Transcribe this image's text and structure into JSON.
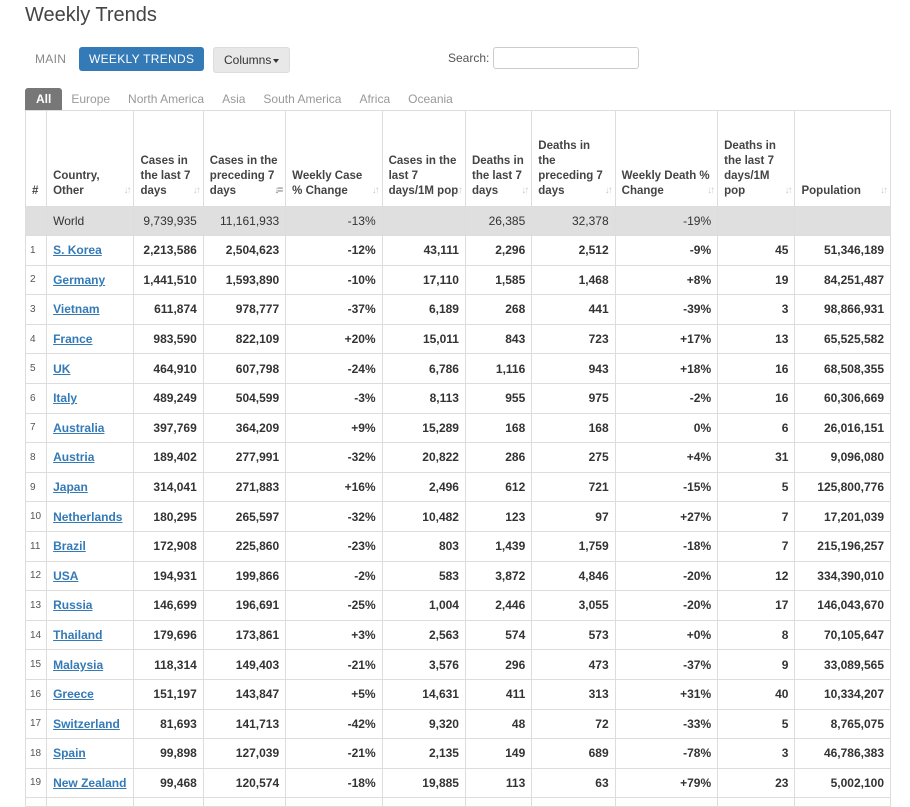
{
  "page": {
    "title": "Weekly Trends"
  },
  "toolbar": {
    "main_label": "MAIN",
    "weekly_label": "WEEKLY TRENDS",
    "columns_label": "Columns",
    "search_label": "Search:",
    "search_value": ""
  },
  "tabs": [
    "All",
    "Europe",
    "North America",
    "Asia",
    "South America",
    "Africa",
    "Oceania"
  ],
  "table": {
    "headers": [
      "#",
      "Country, Other",
      "Cases in the last 7 days",
      "Cases in the preceding 7 days",
      "Weekly Case % Change",
      "Cases in the last 7 days/1M pop",
      "Deaths in the last 7 days",
      "Deaths in the preceding 7 days",
      "Weekly Death % Change",
      "Deaths in the last 7 days/1M pop",
      "Population"
    ],
    "world": [
      "",
      "World",
      "9,739,935",
      "11,161,933",
      "-13%",
      "",
      "26,385",
      "32,378",
      "-19%",
      "",
      ""
    ],
    "rows": [
      [
        "1",
        "S. Korea",
        "2,213,586",
        "2,504,623",
        "-12%",
        "43,111",
        "2,296",
        "2,512",
        "-9%",
        "45",
        "51,346,189"
      ],
      [
        "2",
        "Germany",
        "1,441,510",
        "1,593,890",
        "-10%",
        "17,110",
        "1,585",
        "1,468",
        "+8%",
        "19",
        "84,251,487"
      ],
      [
        "3",
        "Vietnam",
        "611,874",
        "978,777",
        "-37%",
        "6,189",
        "268",
        "441",
        "-39%",
        "3",
        "98,866,931"
      ],
      [
        "4",
        "France",
        "983,590",
        "822,109",
        "+20%",
        "15,011",
        "843",
        "723",
        "+17%",
        "13",
        "65,525,582"
      ],
      [
        "5",
        "UK",
        "464,910",
        "607,798",
        "-24%",
        "6,786",
        "1,116",
        "943",
        "+18%",
        "16",
        "68,508,355"
      ],
      [
        "6",
        "Italy",
        "489,249",
        "504,599",
        "-3%",
        "8,113",
        "955",
        "975",
        "-2%",
        "16",
        "60,306,669"
      ],
      [
        "7",
        "Australia",
        "397,769",
        "364,209",
        "+9%",
        "15,289",
        "168",
        "168",
        "0%",
        "6",
        "26,016,151"
      ],
      [
        "8",
        "Austria",
        "189,402",
        "277,991",
        "-32%",
        "20,822",
        "286",
        "275",
        "+4%",
        "31",
        "9,096,080"
      ],
      [
        "9",
        "Japan",
        "314,041",
        "271,883",
        "+16%",
        "2,496",
        "612",
        "721",
        "-15%",
        "5",
        "125,800,776"
      ],
      [
        "10",
        "Netherlands",
        "180,295",
        "265,597",
        "-32%",
        "10,482",
        "123",
        "97",
        "+27%",
        "7",
        "17,201,039"
      ],
      [
        "11",
        "Brazil",
        "172,908",
        "225,860",
        "-23%",
        "803",
        "1,439",
        "1,759",
        "-18%",
        "7",
        "215,196,257"
      ],
      [
        "12",
        "USA",
        "194,931",
        "199,866",
        "-2%",
        "583",
        "3,872",
        "4,846",
        "-20%",
        "12",
        "334,390,010"
      ],
      [
        "13",
        "Russia",
        "146,699",
        "196,691",
        "-25%",
        "1,004",
        "2,446",
        "3,055",
        "-20%",
        "17",
        "146,043,670"
      ],
      [
        "14",
        "Thailand",
        "179,696",
        "173,861",
        "+3%",
        "2,563",
        "574",
        "573",
        "+0%",
        "8",
        "70,105,647"
      ],
      [
        "15",
        "Malaysia",
        "118,314",
        "149,403",
        "-21%",
        "3,576",
        "296",
        "473",
        "-37%",
        "9",
        "33,089,565"
      ],
      [
        "16",
        "Greece",
        "151,197",
        "143,847",
        "+5%",
        "14,631",
        "411",
        "313",
        "+31%",
        "40",
        "10,334,207"
      ],
      [
        "17",
        "Switzerland",
        "81,693",
        "141,713",
        "-42%",
        "9,320",
        "48",
        "72",
        "-33%",
        "5",
        "8,765,075"
      ],
      [
        "18",
        "Spain",
        "99,898",
        "127,039",
        "-21%",
        "2,135",
        "149",
        "689",
        "-78%",
        "3",
        "46,786,383"
      ],
      [
        "19",
        "New Zealand",
        "99,468",
        "120,574",
        "-18%",
        "19,885",
        "113",
        "63",
        "+79%",
        "23",
        "5,002,100"
      ]
    ]
  },
  "colors": {
    "accent": "#337ab7",
    "world_row": "#dfdfdf",
    "active_tab": "#777777"
  },
  "icons": {
    "sort": "sort-arrows-icon",
    "sort_active": "sort-desc-icon",
    "caret": "caret-down-icon"
  }
}
